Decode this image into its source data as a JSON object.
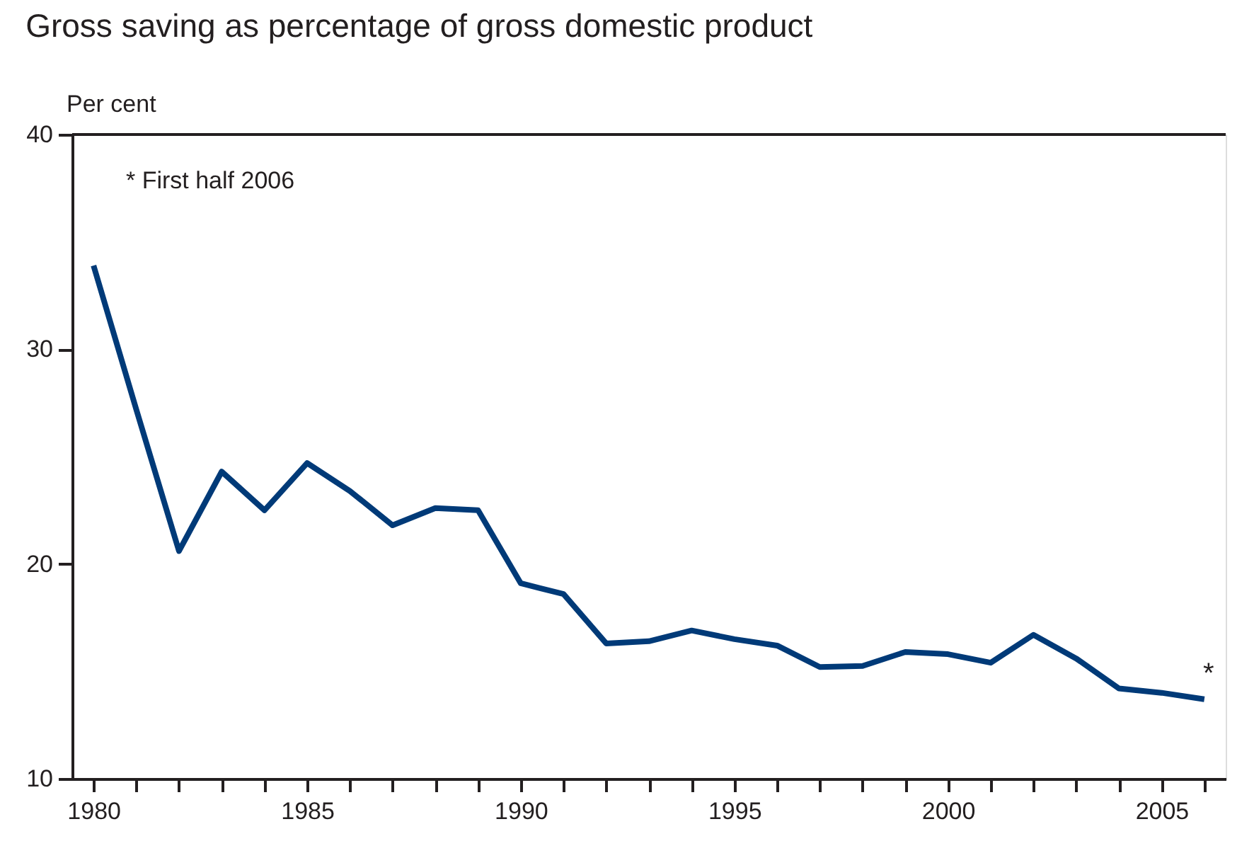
{
  "chart_data": {
    "type": "line",
    "title": "Gross saving as percentage of gross domestic product",
    "ylabel": "Per cent",
    "x": [
      1980,
      1981,
      1982,
      1983,
      1984,
      1985,
      1986,
      1987,
      1988,
      1989,
      1990,
      1991,
      1992,
      1993,
      1994,
      1995,
      1996,
      1997,
      1998,
      1999,
      2000,
      2001,
      2002,
      2003,
      2004,
      2005,
      2006
    ],
    "series": [
      {
        "color": "#003a78",
        "values": [
          33.9,
          27.2,
          20.6,
          24.3,
          22.5,
          24.7,
          23.4,
          21.8,
          22.6,
          22.5,
          19.1,
          18.6,
          16.3,
          16.4,
          16.9,
          16.5,
          16.2,
          15.2,
          15.25,
          15.9,
          15.8,
          15.4,
          16.7,
          15.6,
          14.2,
          14.0,
          13.7
        ]
      }
    ],
    "xlim": [
      1979.5,
      2006.5
    ],
    "xticks": [
      1980,
      {
        "value": 1981,
        "label": null
      },
      {
        "value": 1982,
        "label": null
      },
      {
        "value": 1983,
        "label": null
      },
      {
        "value": 1984,
        "label": null
      },
      1985,
      {
        "value": 1986,
        "label": null
      },
      {
        "value": 1987,
        "label": null
      },
      {
        "value": 1988,
        "label": null
      },
      {
        "value": 1989,
        "label": null
      },
      1990,
      {
        "value": 1991,
        "label": null
      },
      {
        "value": 1992,
        "label": null
      },
      {
        "value": 1993,
        "label": null
      },
      {
        "value": 1994,
        "label": null
      },
      1995,
      {
        "value": 1996,
        "label": null
      },
      {
        "value": 1997,
        "label": null
      },
      {
        "value": 1998,
        "label": null
      },
      {
        "value": 1999,
        "label": null
      },
      2000,
      {
        "value": 2001,
        "label": null
      },
      {
        "value": 2002,
        "label": null
      },
      {
        "value": 2003,
        "label": null
      },
      {
        "value": 2004,
        "label": null
      },
      2005,
      {
        "value": 2006,
        "label": null
      }
    ],
    "ylim": [
      10,
      40
    ],
    "yticks": [
      10,
      20,
      30,
      40
    ],
    "grid": false,
    "legend": false,
    "line_style": "solid",
    "marker": "none",
    "annotations": [
      "* First half 2006",
      {
        "text": "*",
        "x": 2006,
        "y": 13.7
      }
    ]
  }
}
